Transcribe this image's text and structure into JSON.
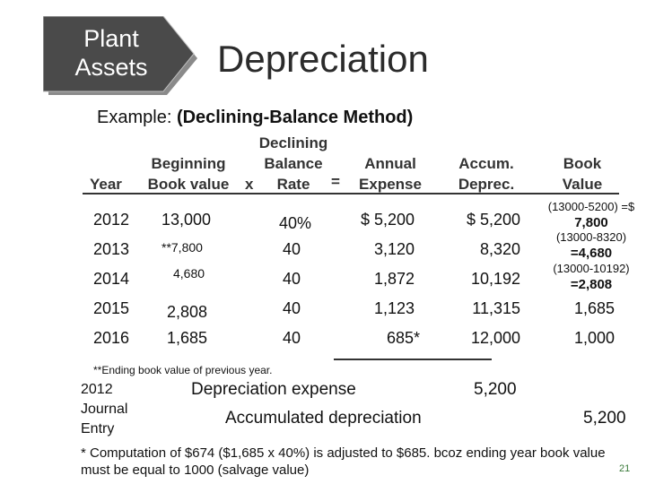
{
  "header": {
    "badge_line1": "Plant",
    "badge_line2": "Assets",
    "title": "Depreciation",
    "example_prefix": "Example:",
    "example_method": "(Declining-Balance Method)"
  },
  "colors": {
    "badge": "#4a4a4a",
    "badge_shadow": "#8a8a8a",
    "page_number": "#3a7a3a"
  },
  "table": {
    "headers": {
      "year": "Year",
      "beginning_1": "Beginning",
      "beginning_2": "Book value",
      "times": "x",
      "rate_1": "Declining",
      "rate_2": "Balance",
      "rate_3": "Rate",
      "equals": "=",
      "expense_1": "Annual",
      "expense_2": "Expense",
      "accum_1": "Accum.",
      "accum_2": "Deprec.",
      "book_1": "Book",
      "book_2": "Value"
    },
    "rows": [
      {
        "year": "2012",
        "beginning": "13,000",
        "rate": "40%",
        "expense": "$ 5,200",
        "accum": "$ 5,200",
        "book_note": "(13000-5200) =$",
        "book_value": "7,800"
      },
      {
        "year": "2013",
        "beginning": "**7,800",
        "rate": "40",
        "expense": "3,120",
        "accum": "8,320",
        "book_note": "(13000-8320)",
        "book_value": "=4,680"
      },
      {
        "year": "2014",
        "beginning": "4,680",
        "rate": "40",
        "expense": "1,872",
        "accum": "10,192",
        "book_note": "(13000-10192)",
        "book_value": "=2,808"
      },
      {
        "year": "2015",
        "beginning": "2,808",
        "rate": "40",
        "expense": "1,123",
        "accum": "11,315",
        "book_value": "1,685"
      },
      {
        "year": "2016",
        "beginning": "1,685",
        "rate": "40",
        "expense": "685*",
        "accum": "12,000",
        "book_value": "1,000"
      }
    ],
    "note": "**Ending book value of previous year."
  },
  "journal": {
    "label_line1": "2012",
    "label_line2": "Journal",
    "label_line3": "Entry",
    "debit_account": "Depreciation expense",
    "debit_amount": "5,200",
    "credit_account": "Accumulated depreciation",
    "credit_amount": "5,200"
  },
  "footnote": "* Computation of $674 ($1,685 x 40%) is adjusted to $685. bcoz ending year book value must be equal to 1000 (salvage value)",
  "page_number": "21"
}
